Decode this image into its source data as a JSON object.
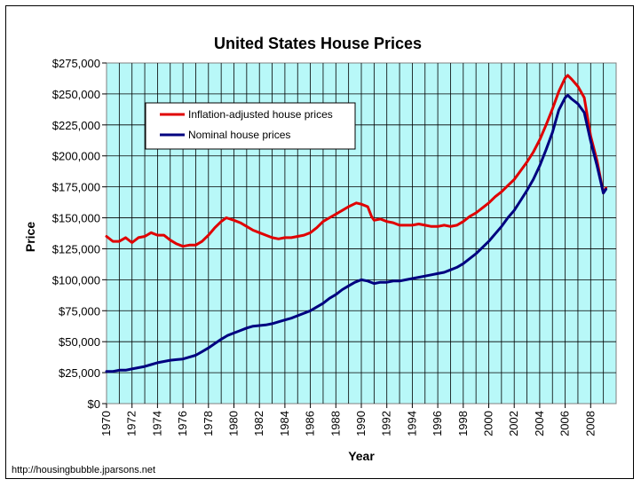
{
  "chart_data": {
    "type": "line",
    "title": "United States House Prices",
    "xlabel": "Year",
    "ylabel": "Price",
    "xlim": [
      1970,
      2010
    ],
    "ylim": [
      0,
      275000
    ],
    "x_ticks": [
      "1970",
      "1972",
      "1974",
      "1976",
      "1978",
      "1980",
      "1982",
      "1984",
      "1986",
      "1988",
      "1990",
      "1992",
      "1994",
      "1996",
      "1998",
      "2000",
      "2002",
      "2004",
      "2006",
      "2008"
    ],
    "y_ticks": [
      "$0",
      "$25,000",
      "$50,000",
      "$75,000",
      "$100,000",
      "$125,000",
      "$150,000",
      "$175,000",
      "$200,000",
      "$225,000",
      "$250,000",
      "$275,000"
    ],
    "y_tick_values": [
      0,
      25000,
      50000,
      75000,
      100000,
      125000,
      150000,
      175000,
      200000,
      225000,
      250000,
      275000
    ],
    "grid": true,
    "legend_position": "top-left",
    "series": [
      {
        "name": "Inflation-adjusted house prices",
        "color": "#e00000",
        "points": [
          [
            1970,
            135000
          ],
          [
            1970.5,
            131000
          ],
          [
            1971,
            131000
          ],
          [
            1971.5,
            134000
          ],
          [
            1972,
            130000
          ],
          [
            1972.5,
            134000
          ],
          [
            1973,
            135000
          ],
          [
            1973.5,
            138000
          ],
          [
            1974,
            136000
          ],
          [
            1974.5,
            136000
          ],
          [
            1975,
            132000
          ],
          [
            1975.5,
            129000
          ],
          [
            1976,
            127000
          ],
          [
            1976.5,
            128000
          ],
          [
            1977,
            128000
          ],
          [
            1977.5,
            131000
          ],
          [
            1978,
            136000
          ],
          [
            1978.5,
            142000
          ],
          [
            1979,
            147000
          ],
          [
            1979.4,
            150000
          ],
          [
            1980,
            148000
          ],
          [
            1980.5,
            146000
          ],
          [
            1981,
            143000
          ],
          [
            1981.5,
            140000
          ],
          [
            1982,
            138000
          ],
          [
            1982.5,
            136000
          ],
          [
            1983,
            134000
          ],
          [
            1983.5,
            133000
          ],
          [
            1984,
            134000
          ],
          [
            1984.5,
            134000
          ],
          [
            1985,
            135000
          ],
          [
            1985.5,
            136000
          ],
          [
            1986,
            138000
          ],
          [
            1986.5,
            142000
          ],
          [
            1987,
            147000
          ],
          [
            1987.5,
            150000
          ],
          [
            1988,
            153000
          ],
          [
            1988.5,
            156000
          ],
          [
            1989,
            159000
          ],
          [
            1989.6,
            162000
          ],
          [
            1990,
            161000
          ],
          [
            1990.5,
            159000
          ],
          [
            1990.8,
            151000
          ],
          [
            1991,
            148000
          ],
          [
            1991.5,
            149000
          ],
          [
            1992,
            147000
          ],
          [
            1992.5,
            146000
          ],
          [
            1993,
            144000
          ],
          [
            1993.5,
            144000
          ],
          [
            1994,
            144000
          ],
          [
            1994.5,
            145000
          ],
          [
            1995,
            144000
          ],
          [
            1995.5,
            143000
          ],
          [
            1996,
            143000
          ],
          [
            1996.5,
            144000
          ],
          [
            1997,
            143000
          ],
          [
            1997.5,
            144000
          ],
          [
            1998,
            147000
          ],
          [
            1998.5,
            151000
          ],
          [
            1999,
            154000
          ],
          [
            1999.5,
            158000
          ],
          [
            2000,
            162000
          ],
          [
            2000.5,
            167000
          ],
          [
            2001,
            171000
          ],
          [
            2001.5,
            176000
          ],
          [
            2002,
            181000
          ],
          [
            2002.5,
            188000
          ],
          [
            2003,
            195000
          ],
          [
            2003.5,
            203000
          ],
          [
            2004,
            213000
          ],
          [
            2004.5,
            225000
          ],
          [
            2005,
            238000
          ],
          [
            2005.5,
            252000
          ],
          [
            2006,
            263000
          ],
          [
            2006.2,
            265000
          ],
          [
            2006.5,
            262000
          ],
          [
            2007,
            256000
          ],
          [
            2007.5,
            247000
          ],
          [
            2008,
            216000
          ],
          [
            2008.5,
            196000
          ],
          [
            2009,
            170000
          ],
          [
            2009.2,
            174000
          ]
        ]
      },
      {
        "name": "Nominal house prices",
        "color": "#000080",
        "points": [
          [
            1970,
            26000
          ],
          [
            1970.5,
            26000
          ],
          [
            1971,
            27000
          ],
          [
            1971.5,
            27000
          ],
          [
            1972,
            28000
          ],
          [
            1972.5,
            29000
          ],
          [
            1973,
            30000
          ],
          [
            1973.5,
            31500
          ],
          [
            1974,
            33000
          ],
          [
            1974.5,
            34000
          ],
          [
            1975,
            35000
          ],
          [
            1975.5,
            35500
          ],
          [
            1976,
            36000
          ],
          [
            1976.5,
            37500
          ],
          [
            1977,
            39000
          ],
          [
            1977.5,
            42000
          ],
          [
            1978,
            45000
          ],
          [
            1978.5,
            48500
          ],
          [
            1979,
            52000
          ],
          [
            1979.5,
            55000
          ],
          [
            1980,
            57000
          ],
          [
            1980.5,
            59000
          ],
          [
            1981,
            61000
          ],
          [
            1981.5,
            62500
          ],
          [
            1982,
            63000
          ],
          [
            1982.5,
            63500
          ],
          [
            1983,
            64500
          ],
          [
            1983.5,
            66000
          ],
          [
            1984,
            67500
          ],
          [
            1984.5,
            69000
          ],
          [
            1985,
            71000
          ],
          [
            1985.5,
            73000
          ],
          [
            1986,
            75000
          ],
          [
            1986.5,
            78000
          ],
          [
            1987,
            81000
          ],
          [
            1987.5,
            85000
          ],
          [
            1988,
            88000
          ],
          [
            1988.5,
            92000
          ],
          [
            1989,
            95000
          ],
          [
            1989.5,
            98000
          ],
          [
            1990,
            100000
          ],
          [
            1990.5,
            99000
          ],
          [
            1991,
            97000
          ],
          [
            1991.5,
            98000
          ],
          [
            1992,
            98000
          ],
          [
            1992.5,
            99000
          ],
          [
            1993,
            99000
          ],
          [
            1993.5,
            100000
          ],
          [
            1994,
            101000
          ],
          [
            1994.5,
            102000
          ],
          [
            1995,
            103000
          ],
          [
            1995.5,
            104000
          ],
          [
            1996,
            105000
          ],
          [
            1996.5,
            106000
          ],
          [
            1997,
            108000
          ],
          [
            1997.5,
            110000
          ],
          [
            1998,
            113000
          ],
          [
            1998.5,
            117000
          ],
          [
            1999,
            121000
          ],
          [
            1999.5,
            126000
          ],
          [
            2000,
            131000
          ],
          [
            2000.5,
            137000
          ],
          [
            2001,
            143000
          ],
          [
            2001.5,
            150000
          ],
          [
            2002,
            156000
          ],
          [
            2002.5,
            164000
          ],
          [
            2003,
            172000
          ],
          [
            2003.5,
            181000
          ],
          [
            2004,
            192000
          ],
          [
            2004.5,
            205000
          ],
          [
            2005,
            219000
          ],
          [
            2005.5,
            237000
          ],
          [
            2006,
            247000
          ],
          [
            2006.2,
            249000
          ],
          [
            2006.5,
            246000
          ],
          [
            2007,
            242000
          ],
          [
            2007.5,
            235000
          ],
          [
            2008,
            212000
          ],
          [
            2008.5,
            192000
          ],
          [
            2009,
            170000
          ],
          [
            2009.2,
            173000
          ]
        ]
      }
    ]
  },
  "credit": "http://housingbubble.jparsons.net",
  "colors": {
    "plot_background": "#b8f8f8",
    "grid": "#000000"
  }
}
